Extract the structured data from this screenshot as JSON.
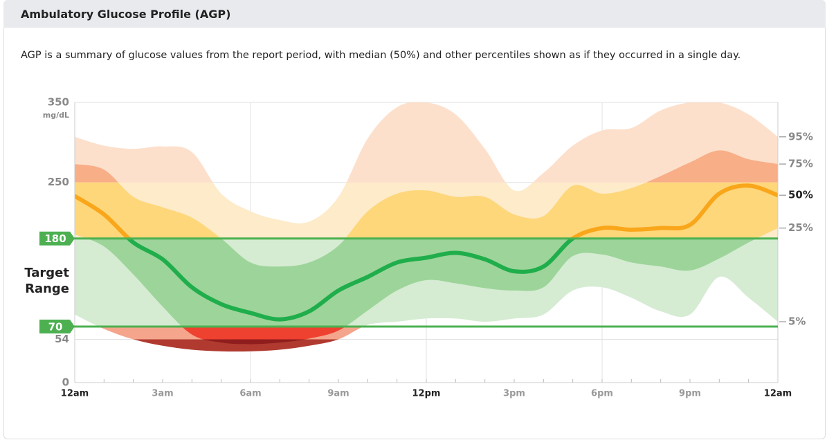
{
  "chart_data": {
    "type": "agp",
    "title": "Ambulatory Glucose Profile (AGP)",
    "description": "AGP is a summary of glucose values from the report period, with median (50%) and other percentiles shown as if they occurred in a single day.",
    "y_unit": "mg/dL",
    "target_range": {
      "label": "Target Range",
      "low": 70,
      "high": 180,
      "color": "#4cb050"
    },
    "xlim": [
      0,
      24
    ],
    "xticks": [
      {
        "value": 0,
        "label": "12am"
      },
      {
        "value": 3,
        "label": "3am"
      },
      {
        "value": 6,
        "label": "6am"
      },
      {
        "value": 9,
        "label": "9am"
      },
      {
        "value": 12,
        "label": "12pm"
      },
      {
        "value": 15,
        "label": "3pm"
      },
      {
        "value": 18,
        "label": "6pm"
      },
      {
        "value": 21,
        "label": "9pm"
      },
      {
        "value": 24,
        "label": "12am"
      }
    ],
    "ylim": [
      0,
      350
    ],
    "yticks": [
      0,
      54,
      250,
      350
    ],
    "x": [
      0,
      1,
      2,
      3,
      4,
      5,
      6,
      7,
      8,
      9,
      10,
      11,
      12,
      13,
      14,
      15,
      16,
      17,
      18,
      19,
      20,
      21,
      22,
      23,
      24
    ],
    "series": [
      {
        "name": "95%",
        "values": [
          307,
          296,
          292,
          295,
          288,
          236,
          214,
          203,
          201,
          232,
          305,
          344,
          350,
          335,
          292,
          240,
          262,
          296,
          315,
          318,
          340,
          350,
          350,
          335,
          307
        ]
      },
      {
        "name": "75%",
        "values": [
          273,
          266,
          232,
          219,
          206,
          180,
          150,
          145,
          150,
          171,
          214,
          236,
          240,
          232,
          232,
          210,
          208,
          246,
          236,
          243,
          258,
          275,
          290,
          279,
          273
        ]
      },
      {
        "name": "50%",
        "values": [
          233,
          210,
          175,
          154,
          119,
          98,
          87,
          79,
          89,
          115,
          132,
          150,
          156,
          162,
          154,
          139,
          145,
          180,
          193,
          191,
          193,
          197,
          236,
          246,
          234
        ]
      },
      {
        "name": "25%",
        "values": [
          185,
          170,
          135,
          95,
          60,
          50,
          48,
          50,
          55,
          65,
          90,
          115,
          128,
          124,
          118,
          115,
          119,
          158,
          160,
          150,
          145,
          140,
          155,
          175,
          193
        ]
      },
      {
        "name": "5%",
        "values": [
          85,
          67,
          54,
          46,
          41,
          39,
          39,
          41,
          46,
          54,
          72,
          76,
          80,
          80,
          76,
          80,
          85,
          115,
          119,
          106,
          89,
          85,
          132,
          106,
          76
        ]
      }
    ],
    "zones": [
      {
        "from": 250,
        "to": 350,
        "outer": "#fde0cc",
        "inner": "#f8ae87",
        "line": "#f9a61b"
      },
      {
        "from": 180,
        "to": 250,
        "outer": "#fdebc9",
        "inner": "#fed77b",
        "line": "#f9a61b"
      },
      {
        "from": 70,
        "to": 180,
        "outer": "#d5ecd2",
        "inner": "#9dd49a",
        "line": "#1fae4b"
      },
      {
        "from": 54,
        "to": 70,
        "outer": "#f4a58c",
        "inner": "#ee4130",
        "line": "#1fae4b"
      },
      {
        "from": 0,
        "to": 54,
        "outer": "#b03a30",
        "inner": "#8f1d1d",
        "line": "#1fae4b"
      }
    ]
  }
}
